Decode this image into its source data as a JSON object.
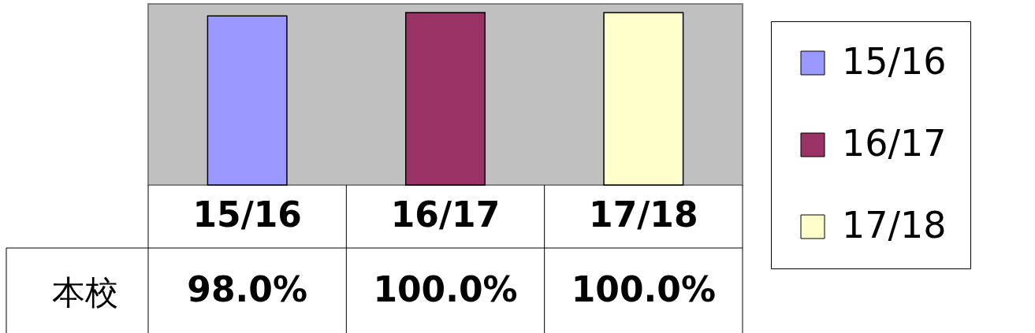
{
  "chart_data": {
    "type": "bar",
    "categories": [
      "15/16",
      "16/17",
      "17/18"
    ],
    "series": [
      {
        "name": "15/16",
        "color": "#9999ff",
        "values": [
          98.0,
          null,
          null
        ],
        "value_labels": [
          "98.0%",
          null,
          null
        ]
      },
      {
        "name": "16/17",
        "color": "#993366",
        "values": [
          null,
          100.0,
          null
        ],
        "value_labels": [
          null,
          "100.0%",
          null
        ]
      },
      {
        "name": "17/18",
        "color": "#ffffcc",
        "values": [
          null,
          null,
          100.0
        ],
        "value_labels": [
          null,
          null,
          "100.0%"
        ]
      }
    ],
    "annotations": [
      "本校"
    ],
    "ylim": [
      0,
      105
    ],
    "legend": "right",
    "tick_labels": "x"
  }
}
